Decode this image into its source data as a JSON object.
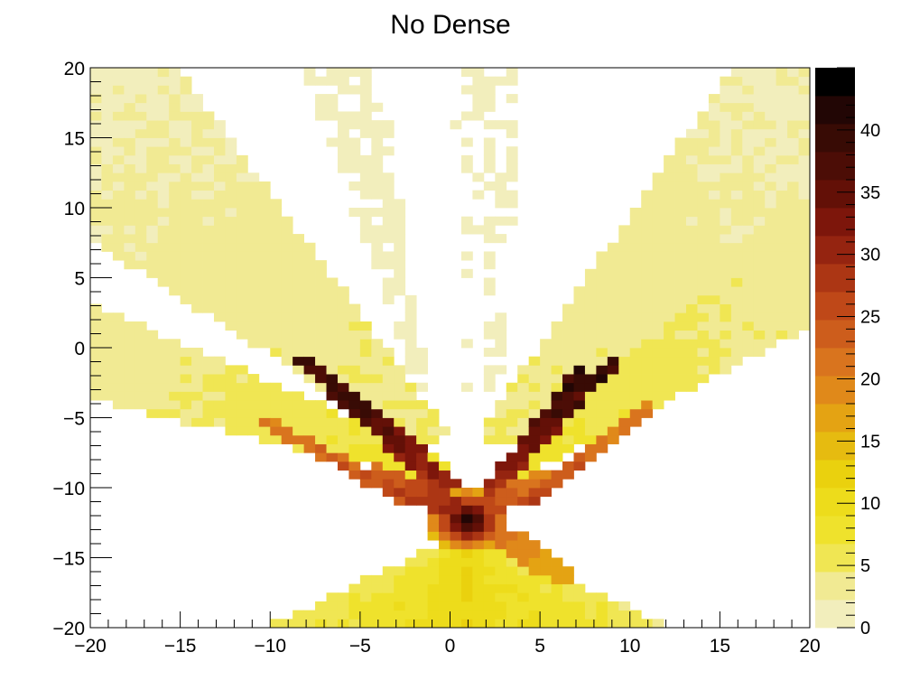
{
  "chart_data": {
    "type": "heatmap",
    "title": "No Dense",
    "xlabel": "",
    "ylabel": "",
    "xlim": [
      -20,
      20
    ],
    "ylim": [
      -20,
      20
    ],
    "bins": [
      64,
      64
    ],
    "x_tick_labels": [
      "−20",
      "−15",
      "−10",
      "−5",
      "0",
      "5",
      "10",
      "15",
      "20"
    ],
    "y_tick_labels": [
      "−20",
      "−15",
      "−10",
      "−5",
      "0",
      "5",
      "10",
      "15",
      "20"
    ],
    "x_ticks": [
      -20,
      -15,
      -10,
      -5,
      0,
      5,
      10,
      15,
      20
    ],
    "y_ticks": [
      -20,
      -15,
      -10,
      -5,
      0,
      5,
      10,
      15,
      20
    ],
    "colorbar": {
      "range": [
        0,
        45
      ],
      "levels": 20,
      "ticks": [
        0,
        5,
        10,
        15,
        20,
        25,
        30,
        35,
        40
      ],
      "tick_labels": [
        "0",
        "5",
        "10",
        "15",
        "20",
        "25",
        "30",
        "35",
        "40"
      ],
      "palette": [
        "#f2eebc",
        "#f1ea93",
        "#f0e653",
        "#efe22c",
        "#eddc1b",
        "#ead10e",
        "#e6bb10",
        "#e4a313",
        "#e0891a",
        "#d9741e",
        "#cd5d1c",
        "#bf4818",
        "#ac3614",
        "#952410",
        "#7d160b",
        "#631007",
        "#4c0d06",
        "#380b05",
        "#220605",
        "#000000"
      ]
    },
    "peak": {
      "x": 1.0,
      "y": -12.3,
      "value": 44
    },
    "features": [
      {
        "name": "upper-left fan band",
        "from": [
          -2,
          -5
        ],
        "to": [
          -20,
          16
        ],
        "level": 2
      },
      {
        "name": "lower-left fan band",
        "from": [
          -1,
          -8
        ],
        "to": [
          -20,
          0
        ],
        "level": 3
      },
      {
        "name": "upper-right fan band",
        "from": [
          3,
          -5
        ],
        "to": [
          20,
          17
        ],
        "level": 2
      },
      {
        "name": "lower-right fan band",
        "from": [
          4,
          -8
        ],
        "to": [
          20,
          5
        ],
        "level": 3
      },
      {
        "name": "left ridge lines",
        "from": [
          -0.5,
          -9
        ],
        "to": [
          -8,
          -0.5
        ],
        "level": 30
      },
      {
        "name": "right ridge lines",
        "from": [
          2,
          -9
        ],
        "to": [
          9,
          -1
        ],
        "level": 30
      },
      {
        "name": "bottom cross",
        "from": [
          -12,
          -20
        ],
        "to": [
          20,
          -20
        ],
        "level": 7
      }
    ]
  }
}
